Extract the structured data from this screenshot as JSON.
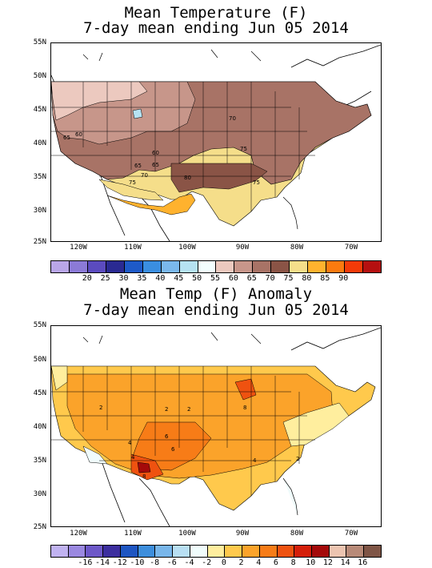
{
  "map1": {
    "title_line1": "Mean Temperature (F)",
    "title_line2": "7-day mean ending Jun 05 2014",
    "lat_labels": [
      "55N",
      "50N",
      "45N",
      "40N",
      "35N",
      "30N",
      "25N"
    ],
    "lon_labels": [
      "120W",
      "110W",
      "100W",
      "90W",
      "80W",
      "70W"
    ],
    "colorbar": {
      "colors": [
        "#b9a6e8",
        "#8b7ad6",
        "#5b4bbf",
        "#2a2a92",
        "#1e5ac8",
        "#3a8ee0",
        "#7ab8ec",
        "#b6e2f2",
        "#f3ffff",
        "#ecc9bf",
        "#c7968a",
        "#a87366",
        "#8a5446",
        "#f5de8a",
        "#ffb22e",
        "#fb7a0f",
        "#f33a08",
        "#b51010"
      ],
      "labels": [
        "20",
        "25",
        "30",
        "35",
        "40",
        "45",
        "50",
        "55",
        "60",
        "65",
        "70",
        "75",
        "80",
        "85",
        "90"
      ]
    },
    "contour_labels": [
      "65",
      "60",
      "65",
      "60",
      "70",
      "75",
      "65",
      "70",
      "75",
      "80",
      "75"
    ]
  },
  "map2": {
    "title_line1": "Mean Temp (F) Anomaly",
    "title_line2": "7-day mean ending Jun 05 2014",
    "lat_labels": [
      "55N",
      "50N",
      "45N",
      "40N",
      "35N",
      "30N",
      "25N"
    ],
    "lon_labels": [
      "120W",
      "110W",
      "100W",
      "90W",
      "80W",
      "70W"
    ],
    "colorbar": {
      "colors": [
        "#c0b2f0",
        "#9a88e0",
        "#6d58c8",
        "#3c2e9e",
        "#1e56c2",
        "#3d8edc",
        "#78b6ea",
        "#b8dff3",
        "#f0fcfc",
        "#ffee9e",
        "#ffc94c",
        "#fba32a",
        "#f77c17",
        "#ef5210",
        "#d41f0a",
        "#a40a0a",
        "#ecc4b0",
        "#b88a78",
        "#7f5546"
      ],
      "labels": [
        "-16",
        "-14",
        "-12",
        "-10",
        "-8",
        "-6",
        "-4",
        "-2",
        "0",
        "2",
        "4",
        "6",
        "8",
        "10",
        "12",
        "14",
        "16"
      ]
    },
    "contour_labels": [
      "2",
      "2",
      "2",
      "4",
      "6",
      "4",
      "8",
      "4",
      "6",
      "4",
      "2",
      "8"
    ]
  }
}
